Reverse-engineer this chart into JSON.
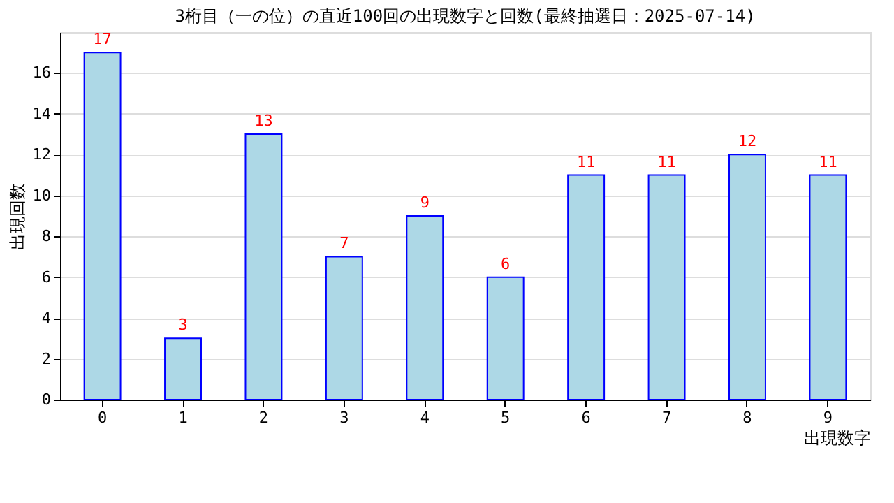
{
  "chart_data": {
    "type": "bar",
    "title": "3桁目（一の位）の直近100回の出現数字と回数(最終抽選日：2025-07-14)",
    "categories": [
      "0",
      "1",
      "2",
      "3",
      "4",
      "5",
      "6",
      "7",
      "8",
      "9"
    ],
    "values": [
      17,
      3,
      13,
      7,
      9,
      6,
      11,
      11,
      12,
      11
    ],
    "color": "#add8e6",
    "xlabel": "出現数字",
    "ylabel": "出現回数",
    "ylim": [
      0,
      18
    ],
    "yticks": [
      0,
      2,
      4,
      6,
      8,
      10,
      12,
      14,
      16
    ],
    "grid": "y",
    "data_labels": true
  }
}
